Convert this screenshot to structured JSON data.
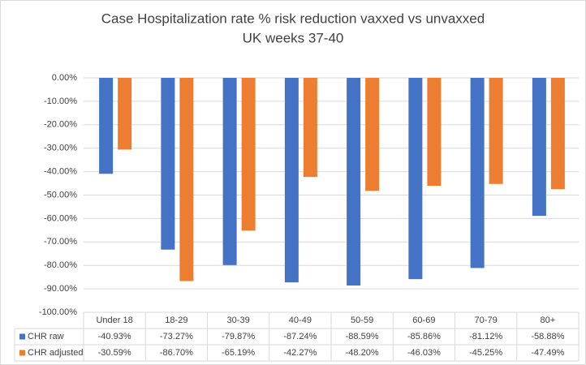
{
  "chart_data": {
    "type": "bar",
    "title": "Case Hospitalization rate % risk reduction vaxxed vs unvaxxed",
    "subtitle": "UK weeks 37-40",
    "categories": [
      "Under 18",
      "18-29",
      "30-39",
      "40-49",
      "50-59",
      "60-69",
      "70-79",
      "80+"
    ],
    "series": [
      {
        "name": "CHR raw",
        "color": "#4472c4",
        "values": [
          -40.93,
          -73.27,
          -79.87,
          -87.24,
          -88.59,
          -85.86,
          -81.12,
          -58.88
        ],
        "value_labels": [
          "-40.93%",
          "-73.27%",
          "-79.87%",
          "-87.24%",
          "-88.59%",
          "-85.86%",
          "-81.12%",
          "-58.88%"
        ]
      },
      {
        "name": "CHR adjusted",
        "color": "#ed7d31",
        "values": [
          -30.59,
          -86.7,
          -65.19,
          -42.27,
          -48.2,
          -46.03,
          -45.25,
          -47.49
        ],
        "value_labels": [
          "-30.59%",
          "-86.70%",
          "-65.19%",
          "-42.27%",
          "-48.20%",
          "-46.03%",
          "-45.25%",
          "-47.49%"
        ]
      }
    ],
    "ylim": [
      -100,
      0
    ],
    "yticks": [
      {
        "value": 0,
        "label": "0.00%"
      },
      {
        "value": -10,
        "label": "-10.00%"
      },
      {
        "value": -20,
        "label": "-20.00%"
      },
      {
        "value": -30,
        "label": "-30.00%"
      },
      {
        "value": -40,
        "label": "-40.00%"
      },
      {
        "value": -50,
        "label": "-50.00%"
      },
      {
        "value": -60,
        "label": "-60.00%"
      },
      {
        "value": -70,
        "label": "-70.00%"
      },
      {
        "value": -80,
        "label": "-80.00%"
      },
      {
        "value": -90,
        "label": "-90.00%"
      },
      {
        "value": -100,
        "label": "-100.00%"
      }
    ],
    "grid": true
  }
}
